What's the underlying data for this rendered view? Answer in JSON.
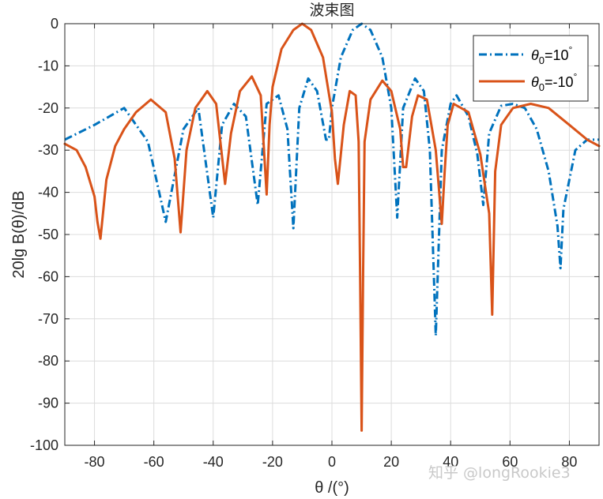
{
  "chart_data": {
    "type": "line",
    "title": "波束图",
    "xlabel": "θ /(°)",
    "ylabel": "20lg B(θ)/dB",
    "xlim": [
      -90,
      90
    ],
    "ylim": [
      -100,
      0
    ],
    "xticks": [
      -80,
      -60,
      -40,
      -20,
      0,
      20,
      40,
      60,
      80
    ],
    "yticks": [
      0,
      -10,
      -20,
      -30,
      -40,
      -50,
      -60,
      -70,
      -80,
      -90,
      -100
    ],
    "xtick_labels": [
      "-80",
      "-60",
      "-40",
      "-20",
      "0",
      "20",
      "40",
      "60",
      "80"
    ],
    "ytick_labels": [
      "0",
      "-10",
      "-20",
      "-30",
      "-40",
      "-50",
      "-60",
      "-70",
      "-80",
      "-90",
      "-100"
    ],
    "grid": true,
    "legend_position": "top-right",
    "series": [
      {
        "name": "θ0=10°",
        "legend_symbol": "θ",
        "legend_sub": "0",
        "legend_rest": "=10",
        "legend_sup": "°",
        "color": "#0072bd",
        "style": "dash-dot",
        "x": [
          -90,
          -80,
          -70,
          -62,
          -56,
          -50,
          -45,
          -40,
          -37,
          -33,
          -29,
          -25,
          -22,
          -18,
          -15,
          -13,
          -11,
          -8,
          -5,
          -2,
          -1,
          0,
          3,
          7,
          10,
          13,
          17,
          20,
          22,
          24,
          28,
          31,
          33,
          35,
          37,
          40,
          42,
          46,
          49,
          51,
          53,
          57,
          61,
          65,
          69,
          73,
          76,
          77,
          78,
          82,
          86,
          90
        ],
        "y": [
          -27.5,
          -24,
          -20,
          -28,
          -47,
          -25,
          -20,
          -46,
          -24,
          -19,
          -22,
          -43,
          -19,
          -17,
          -25,
          -48.5,
          -20,
          -13,
          -16,
          -27.5,
          -27.5,
          -20,
          -8,
          -1.5,
          0,
          -1.5,
          -8,
          -20,
          -46,
          -20,
          -13,
          -16,
          -30,
          -74,
          -30,
          -19,
          -17,
          -22,
          -31,
          -43,
          -26,
          -19.5,
          -19,
          -20,
          -25,
          -35,
          -48,
          -58,
          -44,
          -30,
          -27.5,
          -27.5
        ]
      },
      {
        "name": "θ0=-10°",
        "legend_symbol": "θ",
        "legend_sub": "0",
        "legend_rest": "=-10",
        "legend_sup": "°",
        "color": "#d95319",
        "style": "solid",
        "x": [
          -90,
          -86,
          -83,
          -80,
          -79,
          -78,
          -76,
          -73,
          -70,
          -66,
          -61,
          -56,
          -53,
          -51,
          -49,
          -46,
          -42,
          -39,
          -36,
          -34,
          -31,
          -27,
          -24,
          -22,
          -21,
          -20,
          -17,
          -13,
          -10,
          -7,
          -3,
          0,
          1,
          2,
          4,
          6,
          8,
          9,
          9.5,
          10,
          10.5,
          11,
          13,
          17,
          20,
          23,
          24,
          25,
          27,
          29,
          32,
          35,
          37,
          38,
          39,
          41,
          46,
          50,
          53,
          54,
          55,
          57,
          61,
          67,
          73,
          80,
          86,
          90
        ],
        "y": [
          -28.5,
          -30,
          -34,
          -41,
          -47,
          -51,
          -37,
          -29,
          -25,
          -21,
          -18,
          -21,
          -32,
          -49.5,
          -30,
          -20,
          -16,
          -19,
          -38,
          -26,
          -16,
          -12.5,
          -17,
          -40.5,
          -24,
          -15,
          -6,
          -1.5,
          0,
          -1.5,
          -8,
          -21,
          -32,
          -38,
          -24,
          -16,
          -17,
          -28,
          -60,
          -96.5,
          -60,
          -28,
          -18,
          -13.5,
          -16,
          -25,
          -34,
          -34,
          -22,
          -17,
          -18,
          -30,
          -47.5,
          -35,
          -24,
          -19,
          -21,
          -31,
          -45,
          -69,
          -35,
          -24,
          -20,
          -19,
          -20,
          -24,
          -27.5,
          -29
        ]
      }
    ]
  },
  "watermark": "知乎 @longRookie3"
}
